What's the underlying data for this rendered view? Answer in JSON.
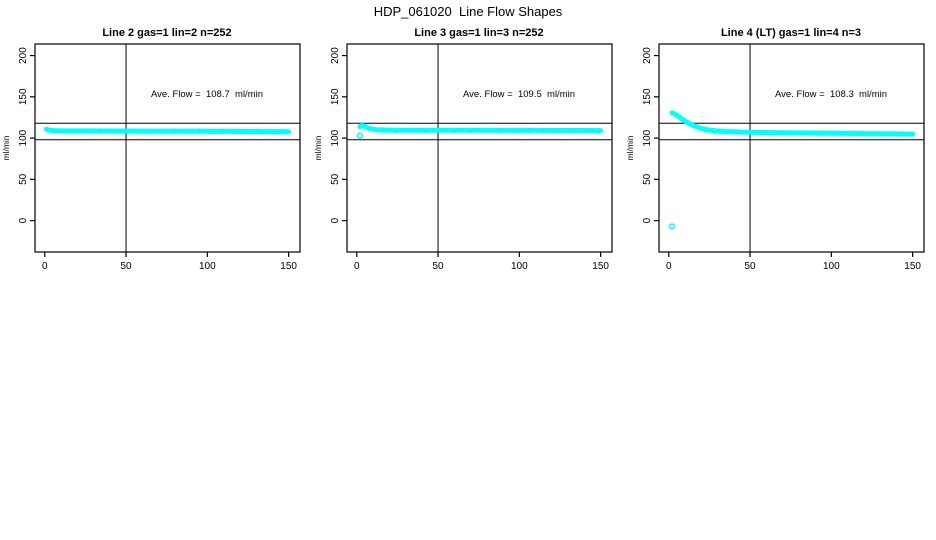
{
  "page_title": "HDP_061020  Line Flow Shapes",
  "chart_data": [
    {
      "type": "scatter",
      "title": "Line 2 gas=1 lin=2 n=252",
      "annotation": "Ave. Flow =  108.7  ml/min",
      "ylabel": "ml/min",
      "x_ticks": [
        0,
        50,
        100,
        150
      ],
      "y_ticks": [
        0,
        50,
        100,
        150,
        200
      ],
      "xlim": [
        -6,
        157
      ],
      "ylim": [
        -38,
        214
      ],
      "hlines": [
        118,
        98
      ],
      "vline": 50,
      "marker_color": "#00ffff",
      "grid": false,
      "series": [
        [
          1,
          110.8
        ],
        [
          2,
          110.2
        ],
        [
          3,
          109.6
        ],
        [
          4,
          109.2
        ],
        [
          6,
          108.9
        ],
        [
          8,
          108.8
        ],
        [
          10,
          108.7
        ],
        [
          15,
          108.7
        ],
        [
          20,
          108.7
        ],
        [
          25,
          108.7
        ],
        [
          30,
          108.6
        ],
        [
          35,
          108.6
        ],
        [
          40,
          108.6
        ],
        [
          45,
          108.5
        ],
        [
          50,
          108.5
        ],
        [
          55,
          108.5
        ],
        [
          60,
          108.4
        ],
        [
          65,
          108.4
        ],
        [
          70,
          108.4
        ],
        [
          75,
          108.3
        ],
        [
          80,
          108.3
        ],
        [
          85,
          108.3
        ],
        [
          90,
          108.2
        ],
        [
          95,
          108.2
        ],
        [
          100,
          108.2
        ],
        [
          105,
          108.1
        ],
        [
          110,
          108.1
        ],
        [
          115,
          108.1
        ],
        [
          120,
          108.0
        ],
        [
          125,
          108.0
        ],
        [
          130,
          108.0
        ],
        [
          135,
          107.9
        ],
        [
          140,
          107.9
        ],
        [
          145,
          107.9
        ],
        [
          150,
          107.8
        ]
      ],
      "dots": [
        [
          13,
          106.6
        ],
        [
          19,
          106.4
        ],
        [
          26,
          106.5
        ],
        [
          34,
          106.3
        ],
        [
          41,
          106.4
        ],
        [
          49,
          106.2
        ],
        [
          57,
          106.3
        ],
        [
          64,
          106.1
        ],
        [
          72,
          106.2
        ],
        [
          80,
          106.0
        ],
        [
          88,
          106.1
        ],
        [
          95,
          105.9
        ],
        [
          103,
          106.0
        ],
        [
          110,
          105.9
        ],
        [
          118,
          105.9
        ],
        [
          126,
          105.8
        ],
        [
          134,
          105.8
        ],
        [
          142,
          105.7
        ],
        [
          148,
          105.7
        ]
      ],
      "outliers": []
    },
    {
      "type": "scatter",
      "title": "Line 3 gas=1 lin=3 n=252",
      "annotation": "Ave. Flow =  109.5  ml/min",
      "ylabel": "ml/min",
      "x_ticks": [
        0,
        50,
        100,
        150
      ],
      "y_ticks": [
        0,
        50,
        100,
        150,
        200
      ],
      "xlim": [
        -6,
        157
      ],
      "ylim": [
        -38,
        214
      ],
      "hlines": [
        118,
        98
      ],
      "vline": 50,
      "marker_color": "#00ffff",
      "grid": false,
      "series": [
        [
          2,
          113.8
        ],
        [
          3,
          115.2
        ],
        [
          4,
          115.0
        ],
        [
          5,
          114.2
        ],
        [
          6,
          113.2
        ],
        [
          7,
          112.2
        ],
        [
          8,
          111.4
        ],
        [
          10,
          110.6
        ],
        [
          12,
          110.2
        ],
        [
          15,
          109.9
        ],
        [
          20,
          109.7
        ],
        [
          25,
          109.6
        ],
        [
          30,
          109.6
        ],
        [
          40,
          109.5
        ],
        [
          50,
          109.5
        ],
        [
          60,
          109.4
        ],
        [
          70,
          109.4
        ],
        [
          80,
          109.4
        ],
        [
          90,
          109.3
        ],
        [
          100,
          109.3
        ],
        [
          110,
          109.3
        ],
        [
          120,
          109.2
        ],
        [
          130,
          109.2
        ],
        [
          140,
          109.2
        ],
        [
          150,
          109.1
        ]
      ],
      "dots": [
        [
          16,
          107.4
        ],
        [
          24,
          107.2
        ],
        [
          33,
          107.3
        ],
        [
          42,
          107.1
        ],
        [
          51,
          107.2
        ],
        [
          60,
          107.0
        ],
        [
          70,
          107.1
        ],
        [
          79,
          106.9
        ],
        [
          88,
          107.0
        ],
        [
          97,
          106.9
        ],
        [
          106,
          106.8
        ],
        [
          115,
          106.9
        ],
        [
          124,
          106.8
        ],
        [
          133,
          106.7
        ],
        [
          142,
          106.7
        ],
        [
          149,
          106.6
        ]
      ],
      "outliers": [
        [
          2,
          103
        ]
      ]
    },
    {
      "type": "scatter",
      "title": "Line 4 (LT) gas=1 lin=4 n=3",
      "annotation": "Ave. Flow =  108.3  ml/min",
      "ylabel": "ml/min",
      "x_ticks": [
        0,
        50,
        100,
        150
      ],
      "y_ticks": [
        0,
        50,
        100,
        150,
        200
      ],
      "xlim": [
        -6,
        157
      ],
      "ylim": [
        -38,
        214
      ],
      "hlines": [
        118,
        98
      ],
      "vline": 50,
      "marker_color": "#00ffff",
      "grid": false,
      "series": [
        [
          2,
          130.5
        ],
        [
          3,
          129.8
        ],
        [
          4,
          128.8
        ],
        [
          5,
          127.6
        ],
        [
          6,
          126.2
        ],
        [
          7,
          124.8
        ],
        [
          8,
          123.4
        ],
        [
          9,
          122.0
        ],
        [
          10,
          120.7
        ],
        [
          12,
          118.3
        ],
        [
          14,
          116.2
        ],
        [
          16,
          114.4
        ],
        [
          18,
          112.9
        ],
        [
          20,
          111.7
        ],
        [
          23,
          110.3
        ],
        [
          26,
          109.4
        ],
        [
          30,
          108.6
        ],
        [
          35,
          108.0
        ],
        [
          40,
          107.6
        ],
        [
          45,
          107.3
        ],
        [
          50,
          107.1
        ],
        [
          60,
          106.8
        ],
        [
          70,
          106.5
        ],
        [
          80,
          106.3
        ],
        [
          90,
          106.1
        ],
        [
          100,
          105.9
        ],
        [
          110,
          105.7
        ],
        [
          120,
          105.5
        ],
        [
          130,
          105.3
        ],
        [
          140,
          105.1
        ],
        [
          150,
          104.9
        ]
      ],
      "dots": [
        [
          28,
          105.9
        ],
        [
          40,
          105.6
        ],
        [
          55,
          105.3
        ],
        [
          70,
          105.1
        ],
        [
          85,
          104.9
        ],
        [
          100,
          104.7
        ],
        [
          115,
          104.6
        ],
        [
          130,
          104.4
        ],
        [
          145,
          104.2
        ]
      ],
      "outliers": [
        [
          2,
          -7
        ]
      ]
    }
  ]
}
